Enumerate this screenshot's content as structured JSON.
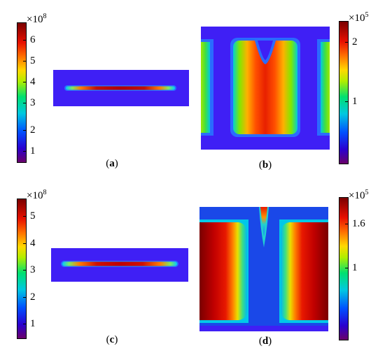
{
  "panels": {
    "a": {
      "caption_open": "(",
      "caption_letter": "a",
      "caption_close": ")",
      "colorbar": {
        "multiplier": "×10",
        "exponent": "8",
        "ticks": [
          "6",
          "5",
          "4",
          "3",
          "2",
          "1"
        ]
      }
    },
    "b": {
      "caption_open": "(",
      "caption_letter": "b",
      "caption_close": ")",
      "colorbar": {
        "multiplier": "×10",
        "exponent": "5",
        "ticks": [
          "2",
          "1"
        ]
      }
    },
    "c": {
      "caption_open": "(",
      "caption_letter": "c",
      "caption_close": ")",
      "colorbar": {
        "multiplier": "×10",
        "exponent": "8",
        "ticks": [
          "5",
          "4",
          "3",
          "2",
          "1"
        ]
      }
    },
    "d": {
      "caption_open": "(",
      "caption_letter": "d",
      "caption_close": ")",
      "colorbar": {
        "multiplier": "×10",
        "exponent": "5",
        "ticks": [
          "1.6",
          "1"
        ]
      }
    }
  },
  "colors": {
    "background": "#3f1ff5",
    "hot": "#e01010",
    "max": "#7a0000"
  }
}
